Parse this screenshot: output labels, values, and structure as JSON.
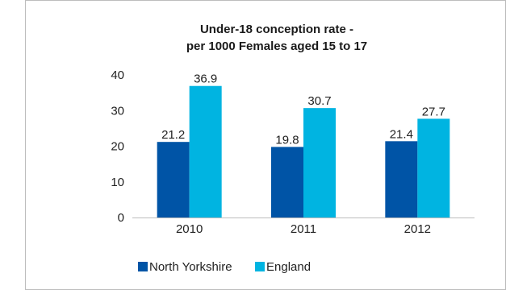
{
  "chart_data": {
    "type": "bar",
    "title_lines": [
      "Under-18 conception rate -",
      "per 1000 Females aged 15 to 17"
    ],
    "categories": [
      "2010",
      "2011",
      "2012"
    ],
    "series": [
      {
        "name": "North Yorkshire",
        "values": [
          21.2,
          19.8,
          21.4
        ],
        "value_labels": [
          "21.2",
          "19.8",
          "21.4"
        ],
        "color": "#0054a6"
      },
      {
        "name": "England",
        "values": [
          36.9,
          30.7,
          27.7
        ],
        "value_labels": [
          "36.9",
          "30.7",
          "27.7"
        ],
        "color": "#00b4e1"
      }
    ],
    "ylim": [
      0,
      40
    ],
    "yticks": [
      "0",
      "10",
      "20",
      "30",
      "40"
    ],
    "grid": false,
    "legend_position": "bottom"
  }
}
